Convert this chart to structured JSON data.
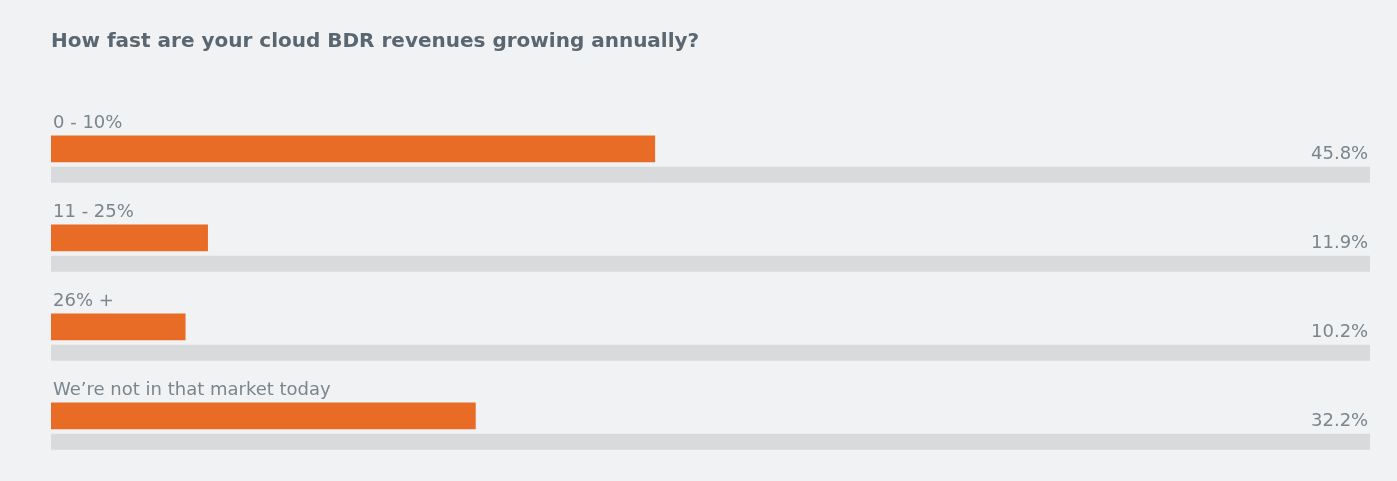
{
  "chart_data": {
    "type": "bar",
    "orientation": "horizontal",
    "title": "How fast are your cloud BDR revenues growing annually?",
    "categories": [
      "0 - 10%",
      "11 - 25%",
      "26% +",
      "We’re not in that market today"
    ],
    "series": [
      {
        "color": "#e86c25",
        "values": [
          45.8,
          11.9,
          10.2,
          32.2
        ],
        "value_labels": [
          "45.8%",
          "11.9%",
          "10.2%",
          "32.2%"
        ]
      },
      {
        "color": "#d9dadc",
        "values": [
          100,
          100,
          100,
          100
        ]
      }
    ],
    "xlim": [
      0,
      100
    ],
    "grid": false,
    "legend": false
  }
}
